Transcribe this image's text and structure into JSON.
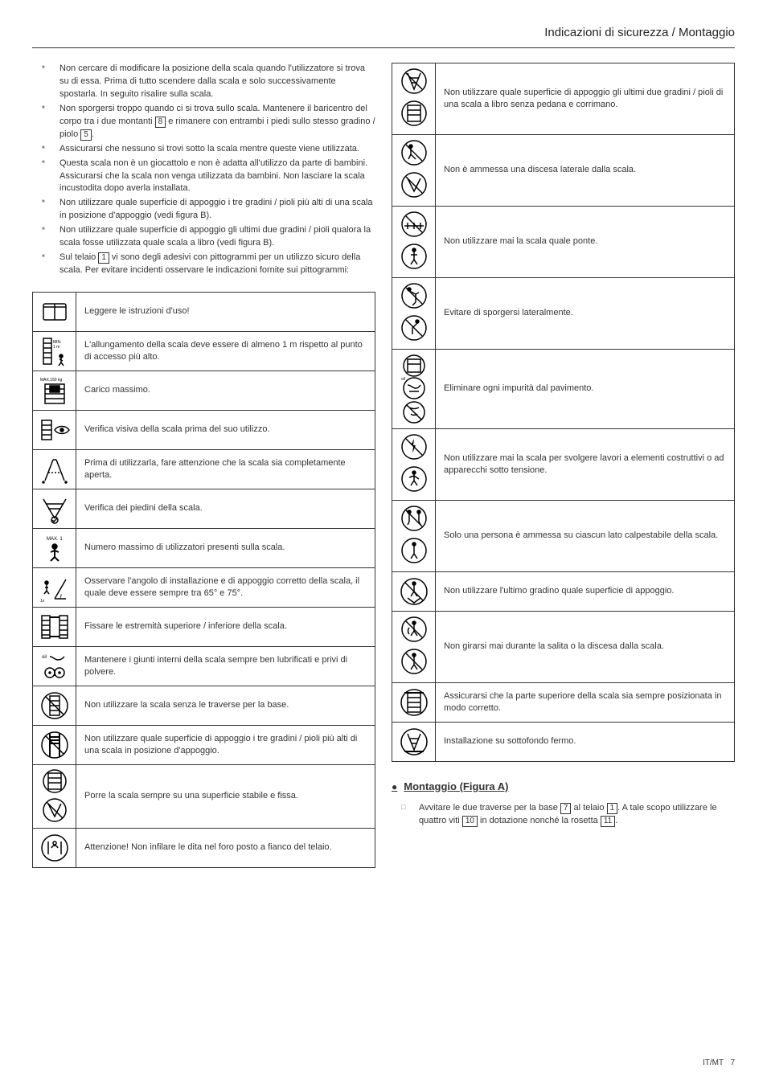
{
  "header": {
    "title": "Indicazioni di sicurezza / Montaggio"
  },
  "bullets": [
    {
      "pre": "Non cercare di modificare la posizione della scala quando l'utilizzatore si trova su di essa. Prima di tutto scendere dalla scala e solo successivamente spostarla. In seguito risalire sulla scala."
    },
    {
      "pre": "Non sporgersi troppo quando ci si trova sullo scala. Mantenere il baricentro del corpo tra i due montanti ",
      "ref1": "8",
      "mid": " e rimanere con entrambi i piedi sullo stesso gradino / piolo ",
      "ref2": "5",
      "post": "."
    },
    {
      "pre": "Assicurarsi che nessuno si trovi sotto la scala mentre queste viene utilizzata."
    },
    {
      "pre": "Questa scala non è un giocattolo e non è adatta all'utilizzo da parte di bambini. Assicurarsi che la scala non venga utilizzata da bambini. Non lasciare la scala incustodita dopo averla installata."
    },
    {
      "pre": "Non utilizzare quale superficie di appoggio i tre gradini / pioli più alti di una scala in posizione d'appoggio (vedi figura B)."
    },
    {
      "pre": "Non utilizzare quale superficie di appoggio gli ultimi due gradini / pioli qualora la scala fosse utilizzata quale scala a libro (vedi figura B)."
    },
    {
      "pre": "Sul telaio ",
      "ref1": "1",
      "mid": " vi sono degli adesivi con pittogrammi per un utilizzo sicuro della scala. Per evitare incidenti osservare le indicazioni fornite sui pittogrammi:"
    }
  ],
  "tableLeft": [
    {
      "icon": "book",
      "text": "Leggere le istruzioni d'uso!"
    },
    {
      "icon": "min1m",
      "text": "L'allungamento della scala deve essere di almeno 1 m rispetto al punto di accesso più alto."
    },
    {
      "icon": "max150",
      "text": "Carico massimo."
    },
    {
      "icon": "eye",
      "text": "Verifica visiva della scala prima del suo utilizzo."
    },
    {
      "icon": "open",
      "text": "Prima di utilizzarla, fare attenzione che la scala sia completamente aperta."
    },
    {
      "icon": "feet",
      "text": "Verifica dei piedini della scala."
    },
    {
      "icon": "max1",
      "text": "Numero massimo di utilizzatori presenti sulla scala."
    },
    {
      "icon": "angle",
      "text": "Osservare l'angolo di installazione e di appoggio corretto della scala, il quale deve essere sempre tra 65° e 75°."
    },
    {
      "icon": "fix",
      "text": "Fissare le estremità superiore / inferiore della scala."
    },
    {
      "icon": "oil",
      "text": "Mantenere i giunti interni della scala sempre ben lubrificati e privi di polvere."
    },
    {
      "icon": "notraverse",
      "text": "Non utilizzare la scala senza le traverse per la base."
    },
    {
      "icon": "no3top",
      "text": "Non utilizzare quale superficie di appoggio i tre gradini / pioli più alti di una scala in posizione d'appoggio."
    },
    {
      "icon": "stable",
      "text": "Porre la scala sempre su una superficie stabile e fissa."
    },
    {
      "icon": "finger",
      "text": "Attenzione! Non infilare le dita nel foro posto a fianco del telaio."
    }
  ],
  "tableRight": [
    {
      "icon": "no2top",
      "text": "Non utilizzare quale superficie di appoggio gli ultimi due gradini / pioli di una scala a libro senza pedana e corrimano."
    },
    {
      "icon": "noside",
      "text": "Non è ammessa una discesa laterale dalla scala."
    },
    {
      "icon": "nobridge",
      "text": "Non utilizzare mai la scala quale ponte."
    },
    {
      "icon": "nolean",
      "text": "Evitare di sporgersi lateralmente."
    },
    {
      "icon": "clean",
      "text": "Eliminare ogni impurità dal pavimento."
    },
    {
      "icon": "noelec",
      "text": "Non utilizzare mai la scala per svolgere lavori a elementi costruttivi o ad apparecchi sotto tensione."
    },
    {
      "icon": "oneperson",
      "text": "Solo una persona è ammessa su ciascun lato calpestabile della scala."
    },
    {
      "icon": "nolast",
      "text": "Non utilizzare l'ultimo gradino quale superficie di appoggio."
    },
    {
      "icon": "noturn",
      "text": "Non girarsi mai durante la salita o la discesa dalla scala."
    },
    {
      "icon": "topok",
      "text": "Assicurarsi che la parte superiore della scala sia sempre posizionata in modo corretto."
    },
    {
      "icon": "ground",
      "text": "Installazione su sottofondo fermo."
    }
  ],
  "assembly": {
    "heading": "Montaggio (Figura A)",
    "item_pre": "Avvitare le due traverse per la base ",
    "ref1": "7",
    "mid1": " al telaio ",
    "ref2": "1",
    "mid2": ". A tale scopo utilizzare le quattro viti ",
    "ref3": "10",
    "mid3": " in dotazione nonché la rosetta ",
    "ref4": "11",
    "post": "."
  },
  "footer": {
    "lang": "IT/MT",
    "page": "7"
  },
  "colors": {
    "text": "#333333",
    "border": "#333333",
    "bullet": "#888888"
  }
}
